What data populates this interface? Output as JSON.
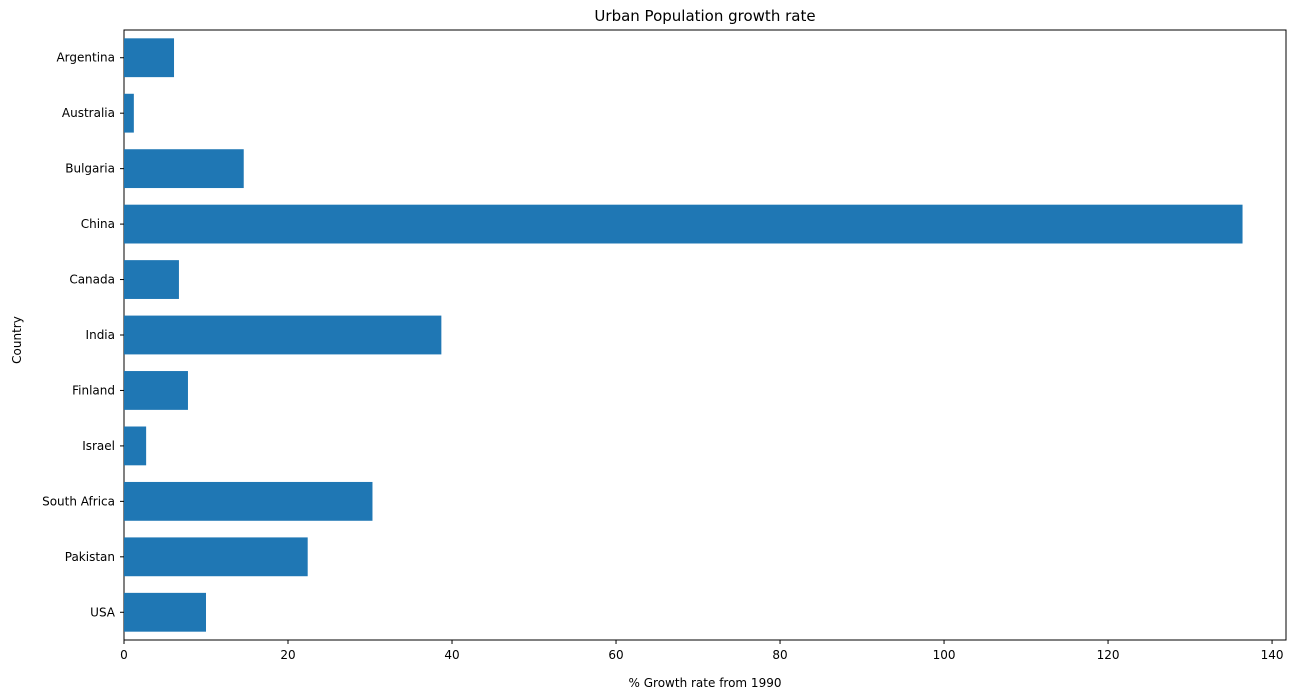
{
  "chart_data": {
    "type": "bar",
    "orientation": "horizontal",
    "title": "Urban Population growth rate",
    "xlabel": "% Growth rate from 1990",
    "ylabel": "Country",
    "xlim": [
      0,
      141.7
    ],
    "xticks": [
      0,
      20,
      40,
      60,
      80,
      100,
      120,
      140
    ],
    "grid": false,
    "bar_color": "#1f77b4",
    "categories": [
      "Argentina",
      "Australia",
      "Bulgaria",
      "China",
      "Canada",
      "India",
      "Finland",
      "Israel",
      "South Africa",
      "Pakistan",
      "USA"
    ],
    "values": [
      6.1,
      1.2,
      14.6,
      136.4,
      6.7,
      38.7,
      7.8,
      2.7,
      30.3,
      22.4,
      10.0
    ]
  }
}
